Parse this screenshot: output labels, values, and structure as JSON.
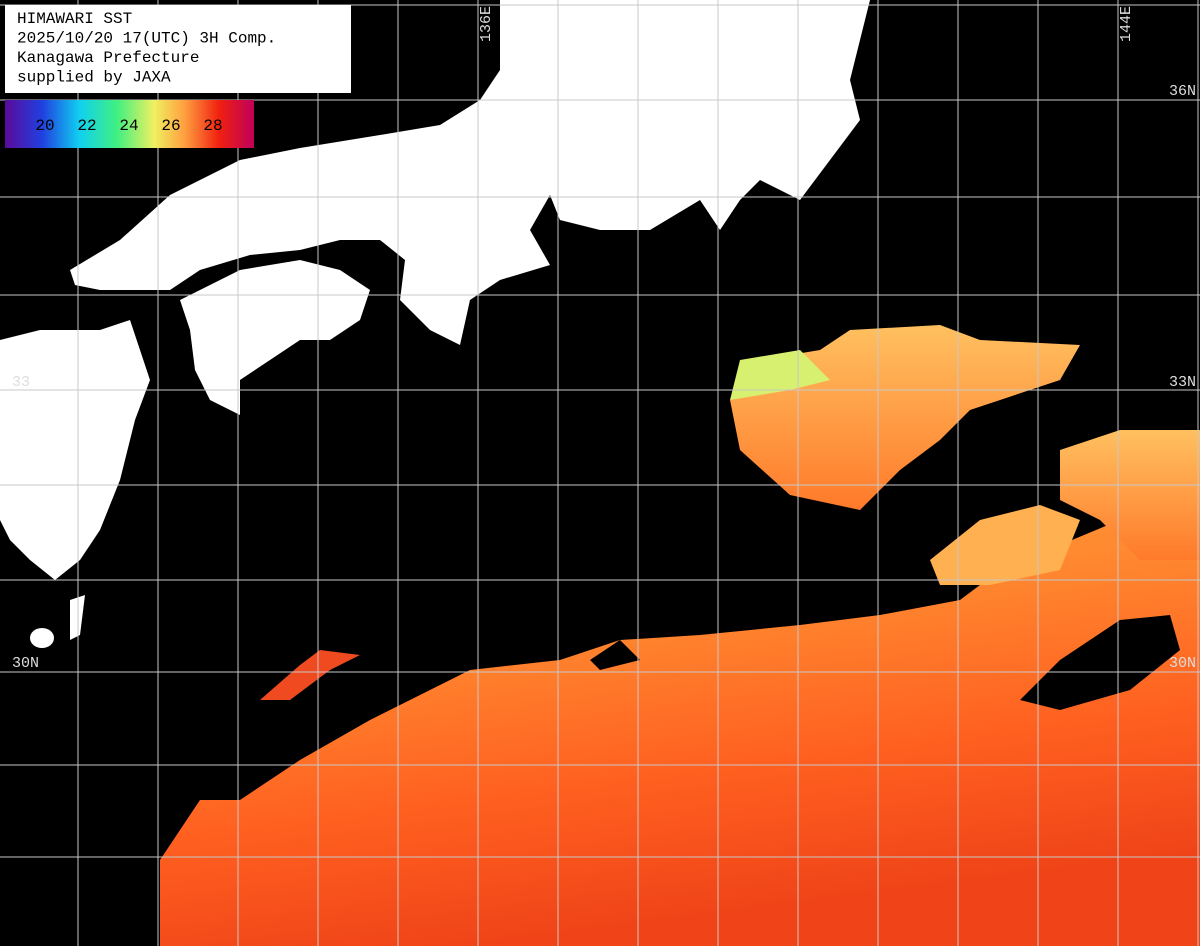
{
  "header": {
    "lines": [
      "HIMAWARI SST",
      "2025/10/20 17(UTC) 3H Comp.",
      "Kanagawa Prefecture",
      "supplied by JAXA"
    ]
  },
  "colorbar": {
    "ticks": [
      20,
      22,
      24,
      26,
      28
    ]
  },
  "grid": {
    "lon_labels": [
      "136E",
      "144E"
    ],
    "lat_labels_right": [
      "36N",
      "33N",
      "30N"
    ],
    "lat_labels_left": [
      "33",
      "30N"
    ]
  }
}
